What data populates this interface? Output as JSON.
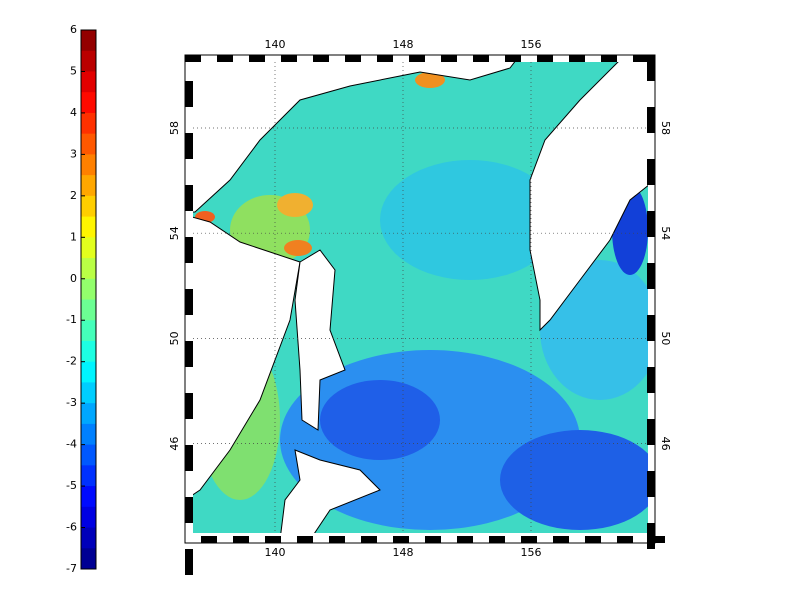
{
  "colorbar": {
    "ticks": [
      6,
      5,
      4,
      3,
      2,
      1,
      0,
      -1,
      -2,
      -3,
      -4,
      -5,
      -6,
      -7
    ]
  },
  "map": {
    "lon_ticks": [
      140,
      148,
      156
    ],
    "lat_ticks": [
      58,
      54,
      50,
      46
    ]
  }
}
